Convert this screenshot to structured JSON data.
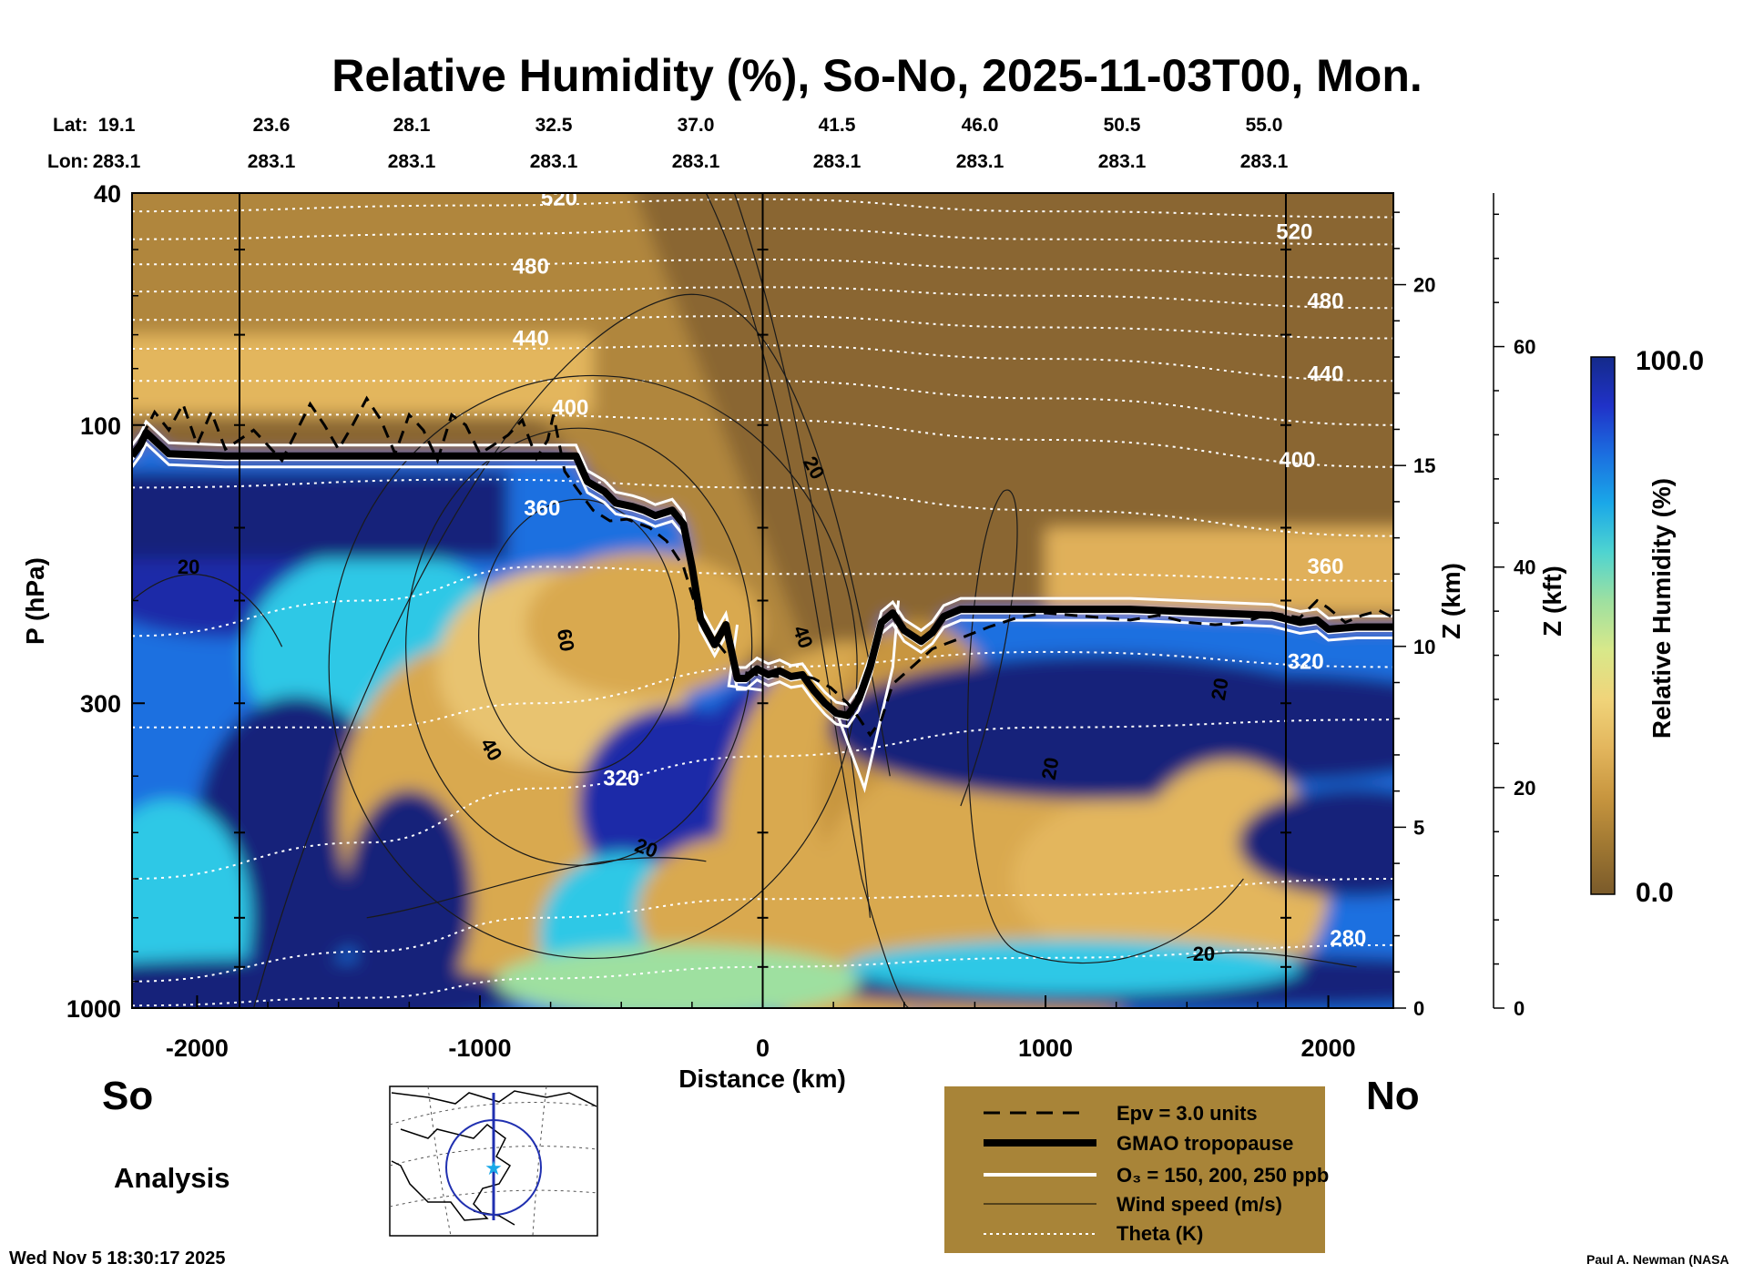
{
  "chart_data": {
    "type": "heatmap",
    "title": "Relative Humidity (%), So-No, 2025-11-03T00, Mon.",
    "xlabel": "Distance (km)",
    "ylabel": "P (hPa)",
    "xlim": [
      -2230,
      2230
    ],
    "ylim": [
      1000,
      40
    ],
    "yscale": "log",
    "x_ticks": [
      -2000,
      -1000,
      0,
      1000,
      2000
    ],
    "x_tick_labels": [
      "-2000",
      "-1000",
      "0",
      "1000",
      "2000"
    ],
    "y_ticks": [
      40,
      100,
      300,
      1000
    ],
    "y_tick_labels": [
      "40",
      "100",
      "300",
      "1000"
    ],
    "lat_label": "Lat:",
    "lon_label": "Lon:",
    "lat_values": [
      "19.1",
      "23.6",
      "28.1",
      "32.5",
      "37.0",
      "41.5",
      "46.0",
      "50.5",
      "55.0"
    ],
    "lon_values": [
      "283.1",
      "283.1",
      "283.1",
      "283.1",
      "283.1",
      "283.1",
      "283.1",
      "283.1",
      "283.1"
    ],
    "right_axis_km": {
      "label": "Z (km)",
      "ticks": [
        "0",
        "5",
        "10",
        "15",
        "20"
      ],
      "values_km": [
        0,
        5,
        10,
        15,
        20
      ]
    },
    "right_axis_kft": {
      "label": "Z (kft)",
      "ticks": [
        "0",
        "20",
        "40",
        "60"
      ],
      "values_kft": [
        0,
        20,
        40,
        60
      ]
    },
    "colorbar": {
      "label": "Relative Humidity (%)",
      "min_label": "0.0",
      "max_label": "100.0",
      "range": [
        0,
        100
      ],
      "colors": [
        "#7a5a2a",
        "#a07832",
        "#c8963f",
        "#e3b65d",
        "#f0d47a",
        "#d8e88a",
        "#9ee0a0",
        "#4fd4d0",
        "#1aa8e8",
        "#1b6fe0",
        "#2032c8",
        "#142a8a"
      ]
    },
    "theta_labels": [
      {
        "text": "520",
        "x": -720,
        "p": 42
      },
      {
        "text": "480",
        "x": -820,
        "p": 55
      },
      {
        "text": "440",
        "x": -820,
        "p": 73
      },
      {
        "text": "400",
        "x": -680,
        "p": 96
      },
      {
        "text": "360",
        "x": -780,
        "p": 143
      },
      {
        "text": "320",
        "x": -500,
        "p": 415
      },
      {
        "text": "520",
        "x": 1880,
        "p": 48
      },
      {
        "text": "480",
        "x": 1990,
        "p": 63
      },
      {
        "text": "440",
        "x": 1990,
        "p": 84
      },
      {
        "text": "400",
        "x": 1890,
        "p": 118
      },
      {
        "text": "360",
        "x": 1990,
        "p": 180
      },
      {
        "text": "320",
        "x": 1920,
        "p": 262
      },
      {
        "text": "280",
        "x": 2070,
        "p": 780
      }
    ],
    "wind_labels": [
      {
        "text": "20",
        "x": -2030,
        "p": 180,
        "rot": 0
      },
      {
        "text": "60",
        "x": -720,
        "p": 235,
        "rot": 80
      },
      {
        "text": "40",
        "x": -980,
        "p": 365,
        "rot": 60
      },
      {
        "text": "20",
        "x": -420,
        "p": 545,
        "rot": 20
      },
      {
        "text": "20",
        "x": 160,
        "p": 120,
        "rot": 60
      },
      {
        "text": "40",
        "x": 120,
        "p": 233,
        "rot": 70
      },
      {
        "text": "20",
        "x": 1040,
        "p": 390,
        "rot": -80
      },
      {
        "text": "20",
        "x": 1640,
        "p": 285,
        "rot": -80
      },
      {
        "text": "20",
        "x": 1560,
        "p": 830,
        "rot": 0
      }
    ],
    "gmao_tropopause": {
      "x": [
        -2230,
        -2200,
        -2180,
        -2100,
        -1900,
        -1600,
        -1300,
        -1000,
        -760,
        -700,
        -660,
        -620,
        -560,
        -520,
        -460,
        -420,
        -380,
        -320,
        -280,
        -250,
        -220,
        -170,
        -130,
        -90,
        -60,
        -20,
        20,
        60,
        100,
        140,
        180,
        220,
        260,
        300,
        340,
        380,
        420,
        460,
        500,
        560,
        600,
        640,
        700,
        800,
        1000,
        1300,
        1600,
        1800,
        1900,
        1960,
        2000,
        2100,
        2230
      ],
      "p": [
        113,
        108,
        103,
        112,
        113,
        113,
        113,
        113,
        113,
        113,
        113,
        125,
        130,
        136,
        138,
        140,
        143,
        140,
        148,
        175,
        215,
        238,
        220,
        272,
        272,
        262,
        268,
        264,
        270,
        268,
        285,
        300,
        312,
        315,
        295,
        260,
        218,
        210,
        225,
        235,
        227,
        213,
        207,
        207,
        207,
        207,
        210,
        212,
        218,
        216,
        224,
        222,
        222
      ]
    },
    "epv_3_units": {
      "x": [
        -2230,
        -2150,
        -2100,
        -2050,
        -2000,
        -1950,
        -1900,
        -1800,
        -1700,
        -1600,
        -1550,
        -1500,
        -1450,
        -1400,
        -1350,
        -1300,
        -1250,
        -1200,
        -1150,
        -1100,
        -1050,
        -1000,
        -950,
        -900,
        -850,
        -800,
        -760,
        -740,
        -700,
        -660,
        -600,
        -540,
        -480,
        -400,
        -340,
        -280,
        -230,
        -180,
        -120,
        -80,
        -20,
        60,
        120,
        180,
        240,
        300,
        340,
        380,
        420,
        460,
        520,
        600,
        700,
        800,
        900,
        1000,
        1100,
        1200,
        1300,
        1400,
        1500,
        1600,
        1700,
        1800,
        1900,
        1960,
        2000,
        2060,
        2120,
        2180,
        2230
      ],
      "p": [
        113,
        95,
        102,
        92,
        108,
        95,
        110,
        102,
        115,
        92,
        100,
        110,
        100,
        90,
        98,
        112,
        96,
        102,
        115,
        96,
        100,
        112,
        108,
        104,
        98,
        114,
        106,
        96,
        120,
        128,
        140,
        146,
        145,
        150,
        158,
        175,
        210,
        230,
        250,
        265,
        268,
        270,
        268,
        272,
        282,
        300,
        318,
        340,
        320,
        278,
        262,
        242,
        232,
        222,
        214,
        210,
        212,
        214,
        216,
        212,
        218,
        220,
        218,
        210,
        214,
        200,
        206,
        218,
        212,
        208,
        214
      ]
    },
    "o3_contours_ppb": [
      150,
      200,
      250
    ],
    "theta_levels_K": [
      280,
      320,
      360,
      400,
      440,
      480,
      520
    ],
    "wind_levels_ms": [
      20,
      40,
      60
    ],
    "map_inset_visible": true
  },
  "labels": {
    "so": "So",
    "no": "No",
    "analysis": "Analysis",
    "timestamp": "Wed Nov  5 18:30:17 2025",
    "credit": "Paul A. Newman (NASA"
  },
  "legend": {
    "epv": "Epv = 3.0 units",
    "gmao": "GMAO tropopause",
    "o3": "O₃ = 150, 200, 250 ppb",
    "wind": "Wind speed (m/s)",
    "theta": "Theta (K)",
    "bg": "#a88438"
  }
}
